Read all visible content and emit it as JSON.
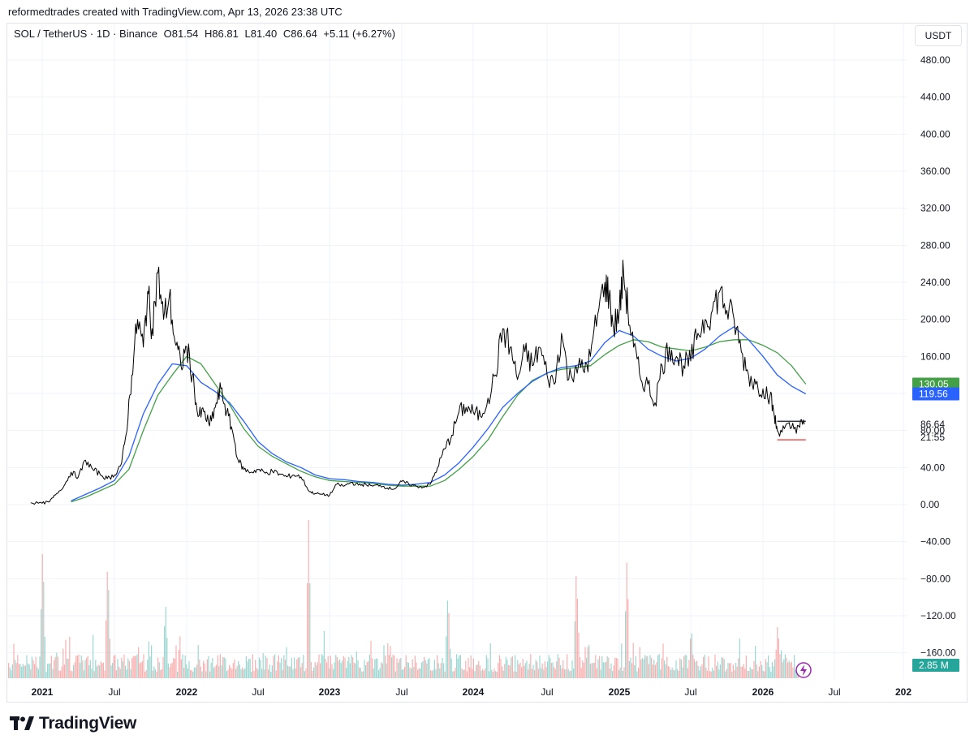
{
  "header": {
    "credit": "reformedtrades created with TradingView.com, Apr 13, 2026 23:38 UTC"
  },
  "legend": {
    "symbol": "SOL / TetherUS · 1D · Binance",
    "open": "O81.54",
    "high": "H86.81",
    "low": "L81.40",
    "close": "C86.64",
    "change": "+5.11 (+6.27%)"
  },
  "currency_button": "USDT",
  "footer": {
    "brand": "TradingView"
  },
  "colors": {
    "up": "#26a69a",
    "down": "#ef5350",
    "ma_fast": "#2962ff",
    "ma_slow": "#43a047",
    "price_line": "#000000",
    "grid": "#f0f3fa"
  },
  "chart_data": {
    "type": "line",
    "title": "SOL / TetherUS · 1D · Binance",
    "x_ticks": [
      "2021",
      "Jul",
      "2022",
      "Jul",
      "2023",
      "Jul",
      "2024",
      "Jul",
      "2025",
      "Jul",
      "2026",
      "Jul",
      "202"
    ],
    "y_ticks": [
      "480.00",
      "440.00",
      "400.00",
      "360.00",
      "320.00",
      "280.00",
      "240.00",
      "200.00",
      "160.00",
      "120.00",
      "80.00",
      "40.00",
      "0.00",
      "−40.00",
      "−80.00",
      "−120.00",
      "−160.00"
    ],
    "ylim": [
      -186,
      500
    ],
    "xlim": [
      2020.92,
      2027.0
    ],
    "series": [
      {
        "name": "price",
        "points": [
          [
            2020.92,
            2
          ],
          [
            2021.0,
            1.5
          ],
          [
            2021.05,
            3
          ],
          [
            2021.1,
            12
          ],
          [
            2021.15,
            20
          ],
          [
            2021.2,
            35
          ],
          [
            2021.25,
            30
          ],
          [
            2021.3,
            48
          ],
          [
            2021.35,
            38
          ],
          [
            2021.4,
            33
          ],
          [
            2021.45,
            28
          ],
          [
            2021.5,
            32
          ],
          [
            2021.55,
            45
          ],
          [
            2021.58,
            75
          ],
          [
            2021.62,
            140
          ],
          [
            2021.66,
            200
          ],
          [
            2021.7,
            170
          ],
          [
            2021.73,
            230
          ],
          [
            2021.76,
            190
          ],
          [
            2021.8,
            250
          ],
          [
            2021.84,
            200
          ],
          [
            2021.88,
            225
          ],
          [
            2021.92,
            175
          ],
          [
            2021.96,
            150
          ],
          [
            2022.0,
            170
          ],
          [
            2022.04,
            140
          ],
          [
            2022.08,
            95
          ],
          [
            2022.12,
            100
          ],
          [
            2022.16,
            85
          ],
          [
            2022.2,
            105
          ],
          [
            2022.24,
            125
          ],
          [
            2022.28,
            100
          ],
          [
            2022.32,
            80
          ],
          [
            2022.36,
            48
          ],
          [
            2022.4,
            38
          ],
          [
            2022.45,
            35
          ],
          [
            2022.5,
            38
          ],
          [
            2022.55,
            34
          ],
          [
            2022.6,
            36
          ],
          [
            2022.65,
            33
          ],
          [
            2022.7,
            30
          ],
          [
            2022.75,
            32
          ],
          [
            2022.8,
            30
          ],
          [
            2022.86,
            14
          ],
          [
            2022.9,
            12
          ],
          [
            2022.95,
            11
          ],
          [
            2023.0,
            10
          ],
          [
            2023.05,
            22
          ],
          [
            2023.1,
            20
          ],
          [
            2023.15,
            24
          ],
          [
            2023.2,
            21
          ],
          [
            2023.25,
            22
          ],
          [
            2023.3,
            20
          ],
          [
            2023.35,
            21
          ],
          [
            2023.4,
            18
          ],
          [
            2023.45,
            17
          ],
          [
            2023.5,
            25
          ],
          [
            2023.55,
            22
          ],
          [
            2023.6,
            20
          ],
          [
            2023.65,
            19
          ],
          [
            2023.7,
            22
          ],
          [
            2023.75,
            40
          ],
          [
            2023.8,
            60
          ],
          [
            2023.85,
            75
          ],
          [
            2023.9,
            100
          ],
          [
            2023.95,
            105
          ],
          [
            2024.0,
            100
          ],
          [
            2024.05,
            95
          ],
          [
            2024.1,
            115
          ],
          [
            2024.15,
            140
          ],
          [
            2024.2,
            190
          ],
          [
            2024.25,
            170
          ],
          [
            2024.3,
            135
          ],
          [
            2024.35,
            165
          ],
          [
            2024.4,
            150
          ],
          [
            2024.45,
            170
          ],
          [
            2024.5,
            140
          ],
          [
            2024.55,
            130
          ],
          [
            2024.6,
            185
          ],
          [
            2024.65,
            135
          ],
          [
            2024.7,
            150
          ],
          [
            2024.75,
            145
          ],
          [
            2024.8,
            160
          ],
          [
            2024.85,
            205
          ],
          [
            2024.9,
            240
          ],
          [
            2024.93,
            225
          ],
          [
            2024.96,
            190
          ],
          [
            2025.0,
            210
          ],
          [
            2025.03,
            250
          ],
          [
            2025.06,
            210
          ],
          [
            2025.1,
            170
          ],
          [
            2025.15,
            135
          ],
          [
            2025.2,
            130
          ],
          [
            2025.25,
            110
          ],
          [
            2025.3,
            150
          ],
          [
            2025.35,
            170
          ],
          [
            2025.4,
            160
          ],
          [
            2025.45,
            150
          ],
          [
            2025.5,
            155
          ],
          [
            2025.55,
            185
          ],
          [
            2025.6,
            200
          ],
          [
            2025.65,
            210
          ],
          [
            2025.7,
            230
          ],
          [
            2025.75,
            210
          ],
          [
            2025.8,
            200
          ],
          [
            2025.85,
            165
          ],
          [
            2025.9,
            140
          ],
          [
            2025.95,
            130
          ],
          [
            2026.0,
            125
          ],
          [
            2026.05,
            118
          ],
          [
            2026.08,
            95
          ],
          [
            2026.1,
            80
          ],
          [
            2026.15,
            82
          ],
          [
            2026.2,
            83
          ],
          [
            2026.25,
            85
          ],
          [
            2026.29,
            86.64
          ]
        ]
      },
      {
        "name": "MA fast (blue)",
        "points": [
          [
            2021.2,
            4
          ],
          [
            2021.3,
            11
          ],
          [
            2021.4,
            18
          ],
          [
            2021.5,
            26
          ],
          [
            2021.6,
            52
          ],
          [
            2021.7,
            98
          ],
          [
            2021.8,
            130
          ],
          [
            2021.9,
            152
          ],
          [
            2022.0,
            150
          ],
          [
            2022.1,
            132
          ],
          [
            2022.2,
            122
          ],
          [
            2022.3,
            110
          ],
          [
            2022.4,
            90
          ],
          [
            2022.5,
            68
          ],
          [
            2022.6,
            55
          ],
          [
            2022.7,
            46
          ],
          [
            2022.8,
            40
          ],
          [
            2022.9,
            32
          ],
          [
            2023.0,
            28
          ],
          [
            2023.1,
            27
          ],
          [
            2023.2,
            25
          ],
          [
            2023.3,
            24
          ],
          [
            2023.4,
            22
          ],
          [
            2023.5,
            21
          ],
          [
            2023.6,
            22
          ],
          [
            2023.7,
            24
          ],
          [
            2023.8,
            32
          ],
          [
            2023.9,
            45
          ],
          [
            2024.0,
            62
          ],
          [
            2024.1,
            82
          ],
          [
            2024.2,
            105
          ],
          [
            2024.3,
            120
          ],
          [
            2024.4,
            133
          ],
          [
            2024.5,
            142
          ],
          [
            2024.6,
            148
          ],
          [
            2024.7,
            150
          ],
          [
            2024.8,
            155
          ],
          [
            2024.9,
            175
          ],
          [
            2025.0,
            188
          ],
          [
            2025.1,
            182
          ],
          [
            2025.2,
            168
          ],
          [
            2025.3,
            160
          ],
          [
            2025.4,
            155
          ],
          [
            2025.5,
            158
          ],
          [
            2025.6,
            168
          ],
          [
            2025.7,
            182
          ],
          [
            2025.8,
            192
          ],
          [
            2025.9,
            178
          ],
          [
            2026.0,
            160
          ],
          [
            2026.1,
            140
          ],
          [
            2026.2,
            128
          ],
          [
            2026.3,
            119.56
          ]
        ]
      },
      {
        "name": "MA slow (green)",
        "points": [
          [
            2021.2,
            3
          ],
          [
            2021.3,
            8
          ],
          [
            2021.4,
            15
          ],
          [
            2021.5,
            22
          ],
          [
            2021.6,
            38
          ],
          [
            2021.7,
            80
          ],
          [
            2021.8,
            118
          ],
          [
            2021.9,
            140
          ],
          [
            2022.0,
            160
          ],
          [
            2022.1,
            152
          ],
          [
            2022.2,
            130
          ],
          [
            2022.3,
            108
          ],
          [
            2022.4,
            82
          ],
          [
            2022.5,
            63
          ],
          [
            2022.6,
            52
          ],
          [
            2022.7,
            44
          ],
          [
            2022.8,
            36
          ],
          [
            2022.9,
            30
          ],
          [
            2023.0,
            26
          ],
          [
            2023.1,
            25
          ],
          [
            2023.2,
            24
          ],
          [
            2023.3,
            23
          ],
          [
            2023.4,
            21
          ],
          [
            2023.5,
            20
          ],
          [
            2023.6,
            20
          ],
          [
            2023.7,
            20
          ],
          [
            2023.8,
            26
          ],
          [
            2023.9,
            38
          ],
          [
            2024.0,
            52
          ],
          [
            2024.1,
            70
          ],
          [
            2024.2,
            95
          ],
          [
            2024.3,
            118
          ],
          [
            2024.4,
            134
          ],
          [
            2024.5,
            142
          ],
          [
            2024.6,
            146
          ],
          [
            2024.7,
            148
          ],
          [
            2024.8,
            150
          ],
          [
            2024.9,
            162
          ],
          [
            2025.0,
            172
          ],
          [
            2025.1,
            178
          ],
          [
            2025.2,
            176
          ],
          [
            2025.3,
            170
          ],
          [
            2025.4,
            168
          ],
          [
            2025.5,
            166
          ],
          [
            2025.6,
            170
          ],
          [
            2025.7,
            176
          ],
          [
            2025.8,
            178
          ],
          [
            2025.9,
            178
          ],
          [
            2026.0,
            172
          ],
          [
            2026.1,
            164
          ],
          [
            2026.2,
            150
          ],
          [
            2026.3,
            130.05
          ]
        ]
      }
    ],
    "volume_note": "Volume histogram along the bottom (teal/red bars), tall spikes near 2021.0, 2021.45, 2022.85, 2023.82, 2024.7, 2025.05",
    "price_labels": [
      {
        "value": "130.05",
        "color": "#43a047"
      },
      {
        "value": "119.56",
        "color": "#2962ff"
      },
      {
        "value": "86.64",
        "color": "none"
      },
      {
        "value": "21:55",
        "color": "none"
      }
    ],
    "volume_label": "2.85 M"
  }
}
